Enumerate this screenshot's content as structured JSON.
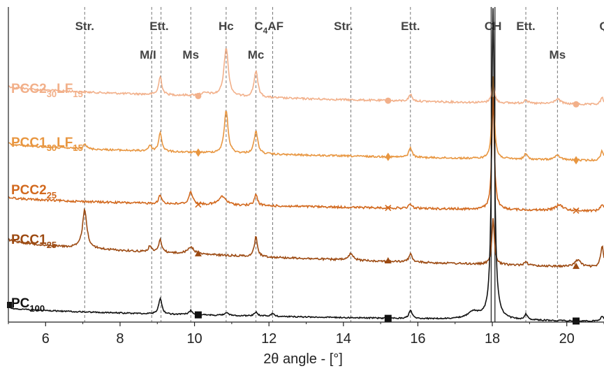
{
  "chart_data": {
    "type": "line",
    "xlabel": "2θ angle - [°]",
    "xlim": [
      5,
      21
    ],
    "x_ticks": [
      6,
      8,
      10,
      12,
      14,
      16,
      18,
      20
    ],
    "grid": false,
    "reference_lines": [
      7.05,
      8.85,
      9.1,
      9.9,
      10.85,
      11.65,
      12.1,
      14.2,
      15.8,
      17.97,
      18.07,
      18.9,
      19.75
    ],
    "peak_labels_top": [
      {
        "text": "Str.",
        "x": 7.05
      },
      {
        "text": "Ett.",
        "x": 9.05
      },
      {
        "text": "Hc",
        "x": 10.85
      },
      {
        "text": "C",
        "sub": "4",
        "suffix": "AF",
        "x": 12.0
      },
      {
        "text": "Str.",
        "x": 14.0
      },
      {
        "text": "Ett.",
        "x": 15.8
      },
      {
        "text": "CH",
        "x": 18.02
      },
      {
        "text": "Ett.",
        "x": 18.9
      },
      {
        "text": "Q",
        "x": 21.0
      }
    ],
    "peak_labels_second": [
      {
        "text": "M/I",
        "x": 8.75
      },
      {
        "text": "Ms",
        "x": 9.9
      },
      {
        "text": "Mc",
        "x": 11.65
      },
      {
        "text": "Ms",
        "x": 19.75
      }
    ],
    "series": [
      {
        "name": "PCC2",
        "sub": "30",
        "name2": "LF",
        "sub2": "15",
        "color": "#f2b08a",
        "marker": "circle"
      },
      {
        "name": "PCC1",
        "sub": "30",
        "name2": "LF",
        "sub2": "15",
        "color": "#e89640",
        "marker": "diamond"
      },
      {
        "name": "PCC2",
        "sub": "25",
        "name2": "",
        "sub2": "",
        "color": "#d2691e",
        "marker": "cross"
      },
      {
        "name": "PCC1",
        "sub": "25",
        "name2": "",
        "sub2": "",
        "color": "#9c4a12",
        "marker": "triangle"
      },
      {
        "name": "PC",
        "sub": "100",
        "name2": "",
        "sub2": "",
        "color": "#111111",
        "marker": "square"
      }
    ],
    "markers_x": [
      10.1,
      15.2,
      20.25
    ]
  }
}
